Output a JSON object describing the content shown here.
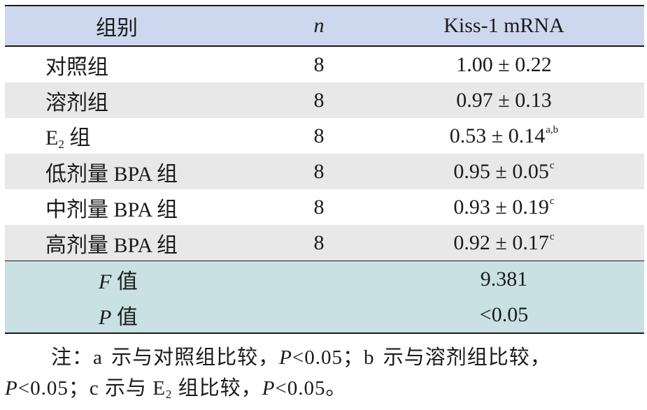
{
  "header": {
    "col1": "组别",
    "col2": "n",
    "col3": "Kiss-1 mRNA"
  },
  "rows": [
    {
      "group": "对照组",
      "n": "8",
      "value": "1.00 ± 0.22",
      "sup": ""
    },
    {
      "group": "溶剂组",
      "n": "8",
      "value": "0.97 ± 0.13",
      "sup": ""
    },
    {
      "group_pre": "E",
      "group_sub": "2",
      "group_post": " 组",
      "n": "8",
      "value": "0.53 ± 0.14",
      "sup": "a,b"
    },
    {
      "group": "低剂量 BPA 组",
      "n": "8",
      "value": "0.95 ± 0.05",
      "sup": "c"
    },
    {
      "group": "中剂量 BPA 组",
      "n": "8",
      "value": "0.93 ± 0.19",
      "sup": "c"
    },
    {
      "group": "高剂量 BPA 组",
      "n": "8",
      "value": "0.92 ± 0.17",
      "sup": "c"
    }
  ],
  "stats": [
    {
      "letter": "F",
      "label": " 值",
      "value": "9.381"
    },
    {
      "letter": "P",
      "label": " 值",
      "value": "<0.05"
    }
  ],
  "note": {
    "line1_a": "注：a 示与对照组比较，",
    "line1_p": "P",
    "line1_b": "<0.05；b 示与溶剂组比较，",
    "line2_p1": "P",
    "line2_a": "<0.05；c 示与 E",
    "line2_sub": "2",
    "line2_b": " 组比较，",
    "line2_p2": "P",
    "line2_c": "<0.05。"
  },
  "colors": {
    "header_bg": "#cdd8ef",
    "shade_bg": "#e8e8e8",
    "stat_bg": "#c9e1e2"
  }
}
